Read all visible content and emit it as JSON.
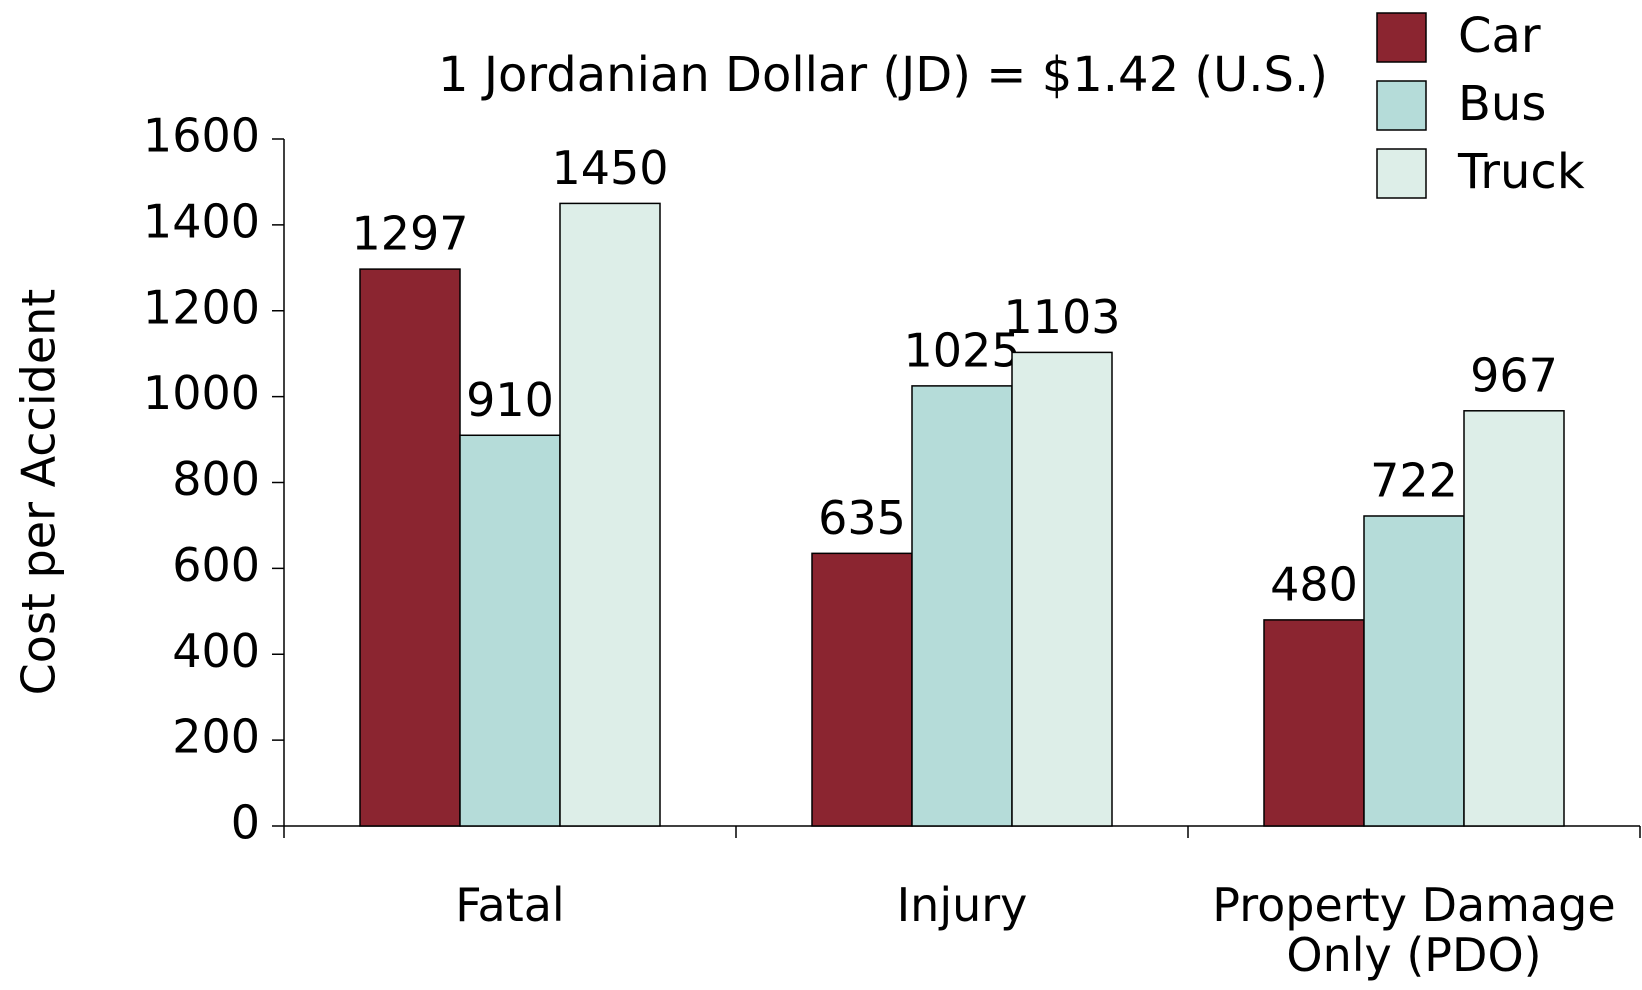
{
  "chart_data": {
    "type": "bar",
    "title": "1 Jordanian Dollar (JD) = $1.42 (U.S.)",
    "y_label": "Cost per Accident",
    "categories": [
      "Fatal",
      "Injury",
      "Property Damage Only (PDO)"
    ],
    "series": [
      {
        "name": "Car",
        "color": "#8b2530",
        "values": [
          1297,
          635,
          480
        ]
      },
      {
        "name": "Bus",
        "color": "#b5dcd9",
        "values": [
          910,
          1025,
          722
        ]
      },
      {
        "name": "Truck",
        "color": "#ddeee8",
        "values": [
          1450,
          1103,
          967
        ]
      }
    ],
    "ylim": [
      0,
      1600
    ],
    "yticks": [
      0,
      200,
      400,
      600,
      800,
      1000,
      1200,
      1400,
      1600
    ],
    "legend": "upper right",
    "grid": false
  }
}
